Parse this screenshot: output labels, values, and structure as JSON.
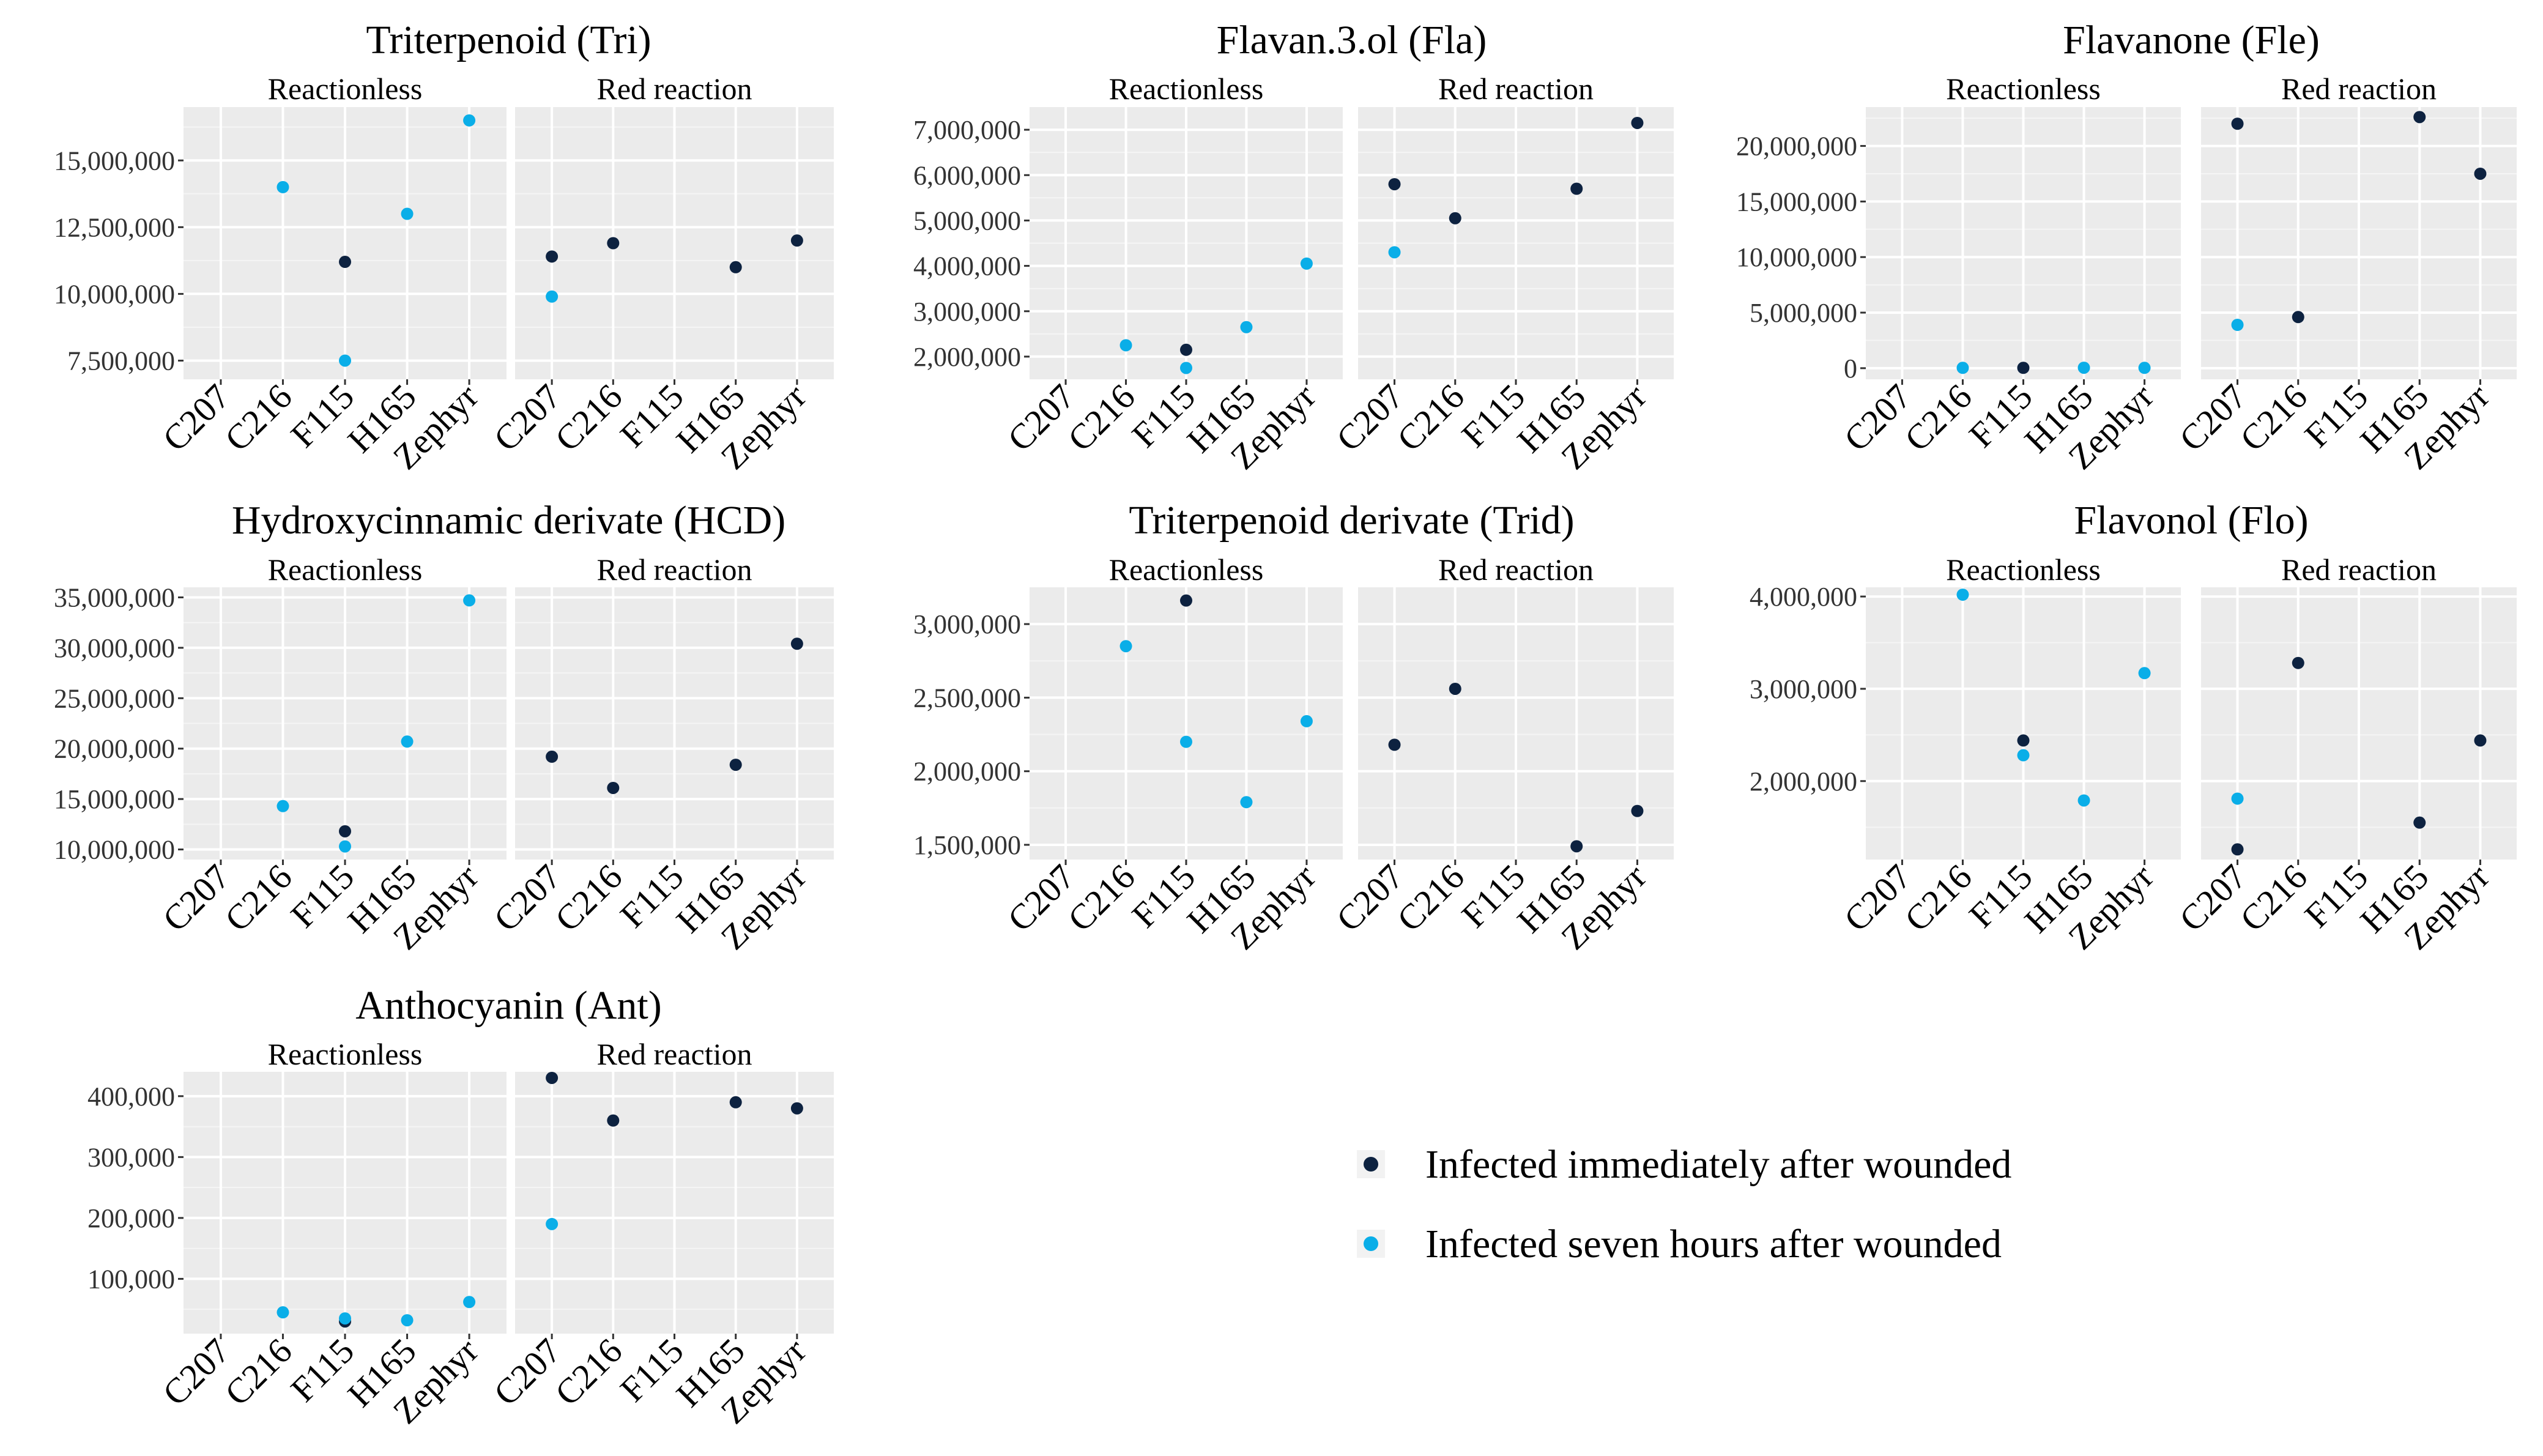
{
  "legend": {
    "entries": [
      {
        "label": "Infected immediately after wounded",
        "color": "#0d2240"
      },
      {
        "label": "Infected seven hours after wounded",
        "color": "#0aaee8"
      }
    ]
  },
  "chart_data": [
    {
      "type": "scatter",
      "title": "Triterpenoid (Tri)",
      "categories": [
        "C207",
        "C216",
        "F115",
        "H165",
        "Zephyr"
      ],
      "ylim": [
        6800000,
        17000000
      ],
      "yticks": [
        7500000,
        10000000,
        12500000,
        15000000
      ],
      "ytick_labels": [
        "7,500,000",
        "10,000,000",
        "12,500,000",
        "15,000,000"
      ],
      "facets": [
        {
          "label": "Reactionless",
          "series": [
            {
              "name": "Infected immediately after wounded",
              "points": [
                [
                  "F115",
                  11200000
                ]
              ]
            },
            {
              "name": "Infected seven hours after wounded",
              "points": [
                [
                  "C216",
                  14000000
                ],
                [
                  "F115",
                  7500000
                ],
                [
                  "H165",
                  13000000
                ],
                [
                  "Zephyr",
                  16500000
                ]
              ]
            }
          ]
        },
        {
          "label": "Red reaction",
          "series": [
            {
              "name": "Infected immediately after wounded",
              "points": [
                [
                  "C207",
                  11400000
                ],
                [
                  "C216",
                  11900000
                ],
                [
                  "H165",
                  11000000
                ],
                [
                  "Zephyr",
                  12000000
                ]
              ]
            },
            {
              "name": "Infected seven hours after wounded",
              "points": [
                [
                  "C207",
                  9900000
                ]
              ]
            }
          ]
        }
      ]
    },
    {
      "type": "scatter",
      "title": "Flavan.3.ol (Fla)",
      "categories": [
        "C207",
        "C216",
        "F115",
        "H165",
        "Zephyr"
      ],
      "ylim": [
        1500000,
        7500000
      ],
      "yticks": [
        2000000,
        3000000,
        4000000,
        5000000,
        6000000,
        7000000
      ],
      "ytick_labels": [
        "2,000,000",
        "3,000,000",
        "4,000,000",
        "5,000,000",
        "6,000,000",
        "7,000,000"
      ],
      "facets": [
        {
          "label": "Reactionless",
          "series": [
            {
              "name": "Infected immediately after wounded",
              "points": [
                [
                  "F115",
                  2150000
                ]
              ]
            },
            {
              "name": "Infected seven hours after wounded",
              "points": [
                [
                  "C216",
                  2250000
                ],
                [
                  "F115",
                  1750000
                ],
                [
                  "H165",
                  2650000
                ],
                [
                  "Zephyr",
                  4050000
                ]
              ]
            }
          ]
        },
        {
          "label": "Red reaction",
          "series": [
            {
              "name": "Infected immediately after wounded",
              "points": [
                [
                  "C207",
                  5800000
                ],
                [
                  "C216",
                  5050000
                ],
                [
                  "H165",
                  5700000
                ],
                [
                  "Zephyr",
                  7150000
                ]
              ]
            },
            {
              "name": "Infected seven hours after wounded",
              "points": [
                [
                  "C207",
                  4300000
                ]
              ]
            }
          ]
        }
      ]
    },
    {
      "type": "scatter",
      "title": "Flavanone (Fle)",
      "categories": [
        "C207",
        "C216",
        "F115",
        "H165",
        "Zephyr"
      ],
      "ylim": [
        -1000000,
        23500000
      ],
      "yticks": [
        0,
        5000000,
        10000000,
        15000000,
        20000000
      ],
      "ytick_labels": [
        "0",
        "5,000,000",
        "10,000,000",
        "15,000,000",
        "20,000,000"
      ],
      "facets": [
        {
          "label": "Reactionless",
          "series": [
            {
              "name": "Infected immediately after wounded",
              "points": [
                [
                  "F115",
                  30000
                ]
              ]
            },
            {
              "name": "Infected seven hours after wounded",
              "points": [
                [
                  "C216",
                  30000
                ],
                [
                  "H165",
                  40000
                ],
                [
                  "Zephyr",
                  30000
                ]
              ]
            }
          ]
        },
        {
          "label": "Red reaction",
          "series": [
            {
              "name": "Infected immediately after wounded",
              "points": [
                [
                  "C207",
                  22000000
                ],
                [
                  "C216",
                  4600000
                ],
                [
                  "H165",
                  22600000
                ],
                [
                  "Zephyr",
                  17500000
                ]
              ]
            },
            {
              "name": "Infected seven hours after wounded",
              "points": [
                [
                  "C207",
                  3900000
                ]
              ]
            }
          ]
        }
      ]
    },
    {
      "type": "scatter",
      "title": "Hydroxycinnamic derivate (HCD)",
      "categories": [
        "C207",
        "C216",
        "F115",
        "H165",
        "Zephyr"
      ],
      "ylim": [
        9000000,
        36000000
      ],
      "yticks": [
        10000000,
        15000000,
        20000000,
        25000000,
        30000000,
        35000000
      ],
      "ytick_labels": [
        "10,000,000",
        "15,000,000",
        "20,000,000",
        "25,000,000",
        "30,000,000",
        "35,000,000"
      ],
      "facets": [
        {
          "label": "Reactionless",
          "series": [
            {
              "name": "Infected immediately after wounded",
              "points": [
                [
                  "F115",
                  11800000
                ]
              ]
            },
            {
              "name": "Infected seven hours after wounded",
              "points": [
                [
                  "C216",
                  14300000
                ],
                [
                  "F115",
                  10300000
                ],
                [
                  "H165",
                  20700000
                ],
                [
                  "Zephyr",
                  34700000
                ]
              ]
            }
          ]
        },
        {
          "label": "Red reaction",
          "series": [
            {
              "name": "Infected immediately after wounded",
              "points": [
                [
                  "C207",
                  19200000
                ],
                [
                  "C216",
                  16100000
                ],
                [
                  "H165",
                  18400000
                ],
                [
                  "Zephyr",
                  30400000
                ]
              ]
            },
            {
              "name": "Infected seven hours after wounded",
              "points": []
            }
          ]
        }
      ]
    },
    {
      "type": "scatter",
      "title": "Triterpenoid derivate (Trid)",
      "categories": [
        "C207",
        "C216",
        "F115",
        "H165",
        "Zephyr"
      ],
      "ylim": [
        1400000,
        3250000
      ],
      "yticks": [
        1500000,
        2000000,
        2500000,
        3000000
      ],
      "ytick_labels": [
        "1,500,000",
        "2,000,000",
        "2,500,000",
        "3,000,000"
      ],
      "facets": [
        {
          "label": "Reactionless",
          "series": [
            {
              "name": "Infected immediately after wounded",
              "points": [
                [
                  "F115",
                  3160000
                ]
              ]
            },
            {
              "name": "Infected seven hours after wounded",
              "points": [
                [
                  "C216",
                  2850000
                ],
                [
                  "F115",
                  2200000
                ],
                [
                  "H165",
                  1790000
                ],
                [
                  "Zephyr",
                  2340000
                ]
              ]
            }
          ]
        },
        {
          "label": "Red reaction",
          "series": [
            {
              "name": "Infected immediately after wounded",
              "points": [
                [
                  "C207",
                  2180000
                ],
                [
                  "C216",
                  2560000
                ],
                [
                  "H165",
                  1490000
                ],
                [
                  "Zephyr",
                  1730000
                ]
              ]
            },
            {
              "name": "Infected seven hours after wounded",
              "points": []
            }
          ]
        }
      ]
    },
    {
      "type": "scatter",
      "title": "Flavonol (Flo)",
      "categories": [
        "C207",
        "C216",
        "F115",
        "H165",
        "Zephyr"
      ],
      "ylim": [
        1150000,
        4100000
      ],
      "yticks": [
        2000000,
        3000000,
        4000000
      ],
      "ytick_labels": [
        "2,000,000",
        "3,000,000",
        "4,000,000"
      ],
      "facets": [
        {
          "label": "Reactionless",
          "series": [
            {
              "name": "Infected immediately after wounded",
              "points": [
                [
                  "F115",
                  2440000
                ]
              ]
            },
            {
              "name": "Infected seven hours after wounded",
              "points": [
                [
                  "C216",
                  4020000
                ],
                [
                  "F115",
                  2280000
                ],
                [
                  "H165",
                  1790000
                ],
                [
                  "Zephyr",
                  3170000
                ]
              ]
            }
          ]
        },
        {
          "label": "Red reaction",
          "series": [
            {
              "name": "Infected immediately after wounded",
              "points": [
                [
                  "C207",
                  1260000
                ],
                [
                  "C216",
                  3280000
                ],
                [
                  "H165",
                  1550000
                ],
                [
                  "Zephyr",
                  2440000
                ]
              ]
            },
            {
              "name": "Infected seven hours after wounded",
              "points": [
                [
                  "C207",
                  1810000
                ]
              ]
            }
          ]
        }
      ]
    },
    {
      "type": "scatter",
      "title": "Anthocyanin (Ant)",
      "categories": [
        "C207",
        "C216",
        "F115",
        "H165",
        "Zephyr"
      ],
      "ylim": [
        10000,
        440000
      ],
      "yticks": [
        100000,
        200000,
        300000,
        400000
      ],
      "ytick_labels": [
        "100,000",
        "200,000",
        "300,000",
        "400,000"
      ],
      "facets": [
        {
          "label": "Reactionless",
          "series": [
            {
              "name": "Infected immediately after wounded",
              "points": [
                [
                  "F115",
                  30000
                ]
              ]
            },
            {
              "name": "Infected seven hours after wounded",
              "points": [
                [
                  "C216",
                  45000
                ],
                [
                  "F115",
                  35000
                ],
                [
                  "H165",
                  32000
                ],
                [
                  "Zephyr",
                  62000
                ]
              ]
            }
          ]
        },
        {
          "label": "Red reaction",
          "series": [
            {
              "name": "Infected immediately after wounded",
              "points": [
                [
                  "C207",
                  430000
                ],
                [
                  "C216",
                  360000
                ],
                [
                  "H165",
                  390000
                ],
                [
                  "Zephyr",
                  380000
                ]
              ]
            },
            {
              "name": "Infected seven hours after wounded",
              "points": [
                [
                  "C207",
                  190000
                ]
              ]
            }
          ]
        }
      ]
    }
  ]
}
